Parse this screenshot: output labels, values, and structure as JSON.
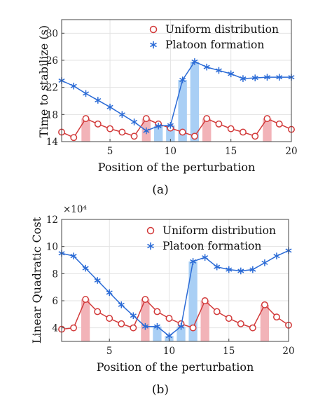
{
  "chart_data": [
    {
      "type": "line",
      "caption": "(a)",
      "xlabel": "Position of the perturbation",
      "ylabel": "Time to stabilize (s)",
      "xlim": [
        1,
        20
      ],
      "ylim": [
        14,
        32
      ],
      "xticks": [
        5,
        10,
        15,
        20
      ],
      "yticks": [
        14,
        18,
        22,
        26,
        30
      ],
      "grid": true,
      "legend_position": "top-right",
      "x": [
        1,
        2,
        3,
        4,
        5,
        6,
        7,
        8,
        9,
        10,
        11,
        12,
        13,
        14,
        15,
        16,
        17,
        18,
        19,
        20
      ],
      "series": [
        {
          "name": "Uniform distribution",
          "marker": "circle",
          "color": "#d23a3a",
          "values": [
            15.4,
            14.6,
            17.4,
            16.6,
            15.9,
            15.4,
            14.8,
            17.4,
            16.6,
            16.0,
            15.4,
            14.8,
            17.4,
            16.6,
            15.9,
            15.4,
            14.8,
            17.4,
            16.6,
            15.8
          ]
        },
        {
          "name": "Platoon formation",
          "marker": "asterisk",
          "color": "#2b6bd6",
          "values": [
            23.0,
            22.2,
            21.1,
            20.1,
            19.1,
            18.0,
            16.9,
            15.6,
            16.3,
            16.4,
            23.1,
            25.8,
            25.0,
            24.5,
            24.0,
            23.3,
            23.4,
            23.5,
            23.5,
            23.5
          ]
        }
      ],
      "bars": [
        {
          "color": "#f2b3b8",
          "x": [
            3,
            8,
            13,
            18
          ],
          "values": [
            17.4,
            17.4,
            17.4,
            17.4
          ]
        },
        {
          "color": "#a9cff5",
          "x": [
            9,
            10,
            11,
            12
          ],
          "values": [
            16.3,
            16.4,
            23.1,
            25.8
          ]
        }
      ]
    },
    {
      "type": "line",
      "caption": "(b)",
      "xlabel": "Position of the perturbation",
      "ylabel": "Linear Quadratic Cost",
      "multiplier": "×10⁴",
      "xlim": [
        1,
        20
      ],
      "ylim": [
        3,
        12
      ],
      "xticks": [
        5,
        10,
        15,
        20
      ],
      "yticks": [
        4,
        6,
        8,
        10,
        12
      ],
      "grid": true,
      "legend_position": "top-right",
      "x": [
        1,
        2,
        3,
        4,
        5,
        6,
        7,
        8,
        9,
        10,
        11,
        12,
        13,
        14,
        15,
        16,
        17,
        18,
        19,
        20
      ],
      "series": [
        {
          "name": "Uniform distribution",
          "marker": "circle",
          "color": "#d23a3a",
          "values": [
            3.9,
            4.0,
            6.1,
            5.2,
            4.7,
            4.3,
            4.0,
            6.1,
            5.2,
            4.7,
            4.3,
            4.0,
            6.0,
            5.2,
            4.7,
            4.3,
            4.0,
            5.7,
            4.8,
            4.2
          ]
        },
        {
          "name": "Platoon formation",
          "marker": "asterisk",
          "color": "#2b6bd6",
          "values": [
            9.5,
            9.3,
            8.4,
            7.5,
            6.6,
            5.7,
            4.9,
            4.1,
            4.1,
            3.4,
            4.1,
            8.9,
            9.2,
            8.5,
            8.3,
            8.2,
            8.3,
            8.8,
            9.3,
            9.7
          ]
        }
      ],
      "bars": [
        {
          "color": "#f2b3b8",
          "x": [
            3,
            8,
            13,
            18
          ],
          "values": [
            6.1,
            6.1,
            6.0,
            5.7
          ]
        },
        {
          "color": "#a9cff5",
          "x": [
            9,
            10,
            11,
            12
          ],
          "values": [
            4.1,
            3.4,
            4.1,
            8.9
          ]
        }
      ]
    }
  ]
}
